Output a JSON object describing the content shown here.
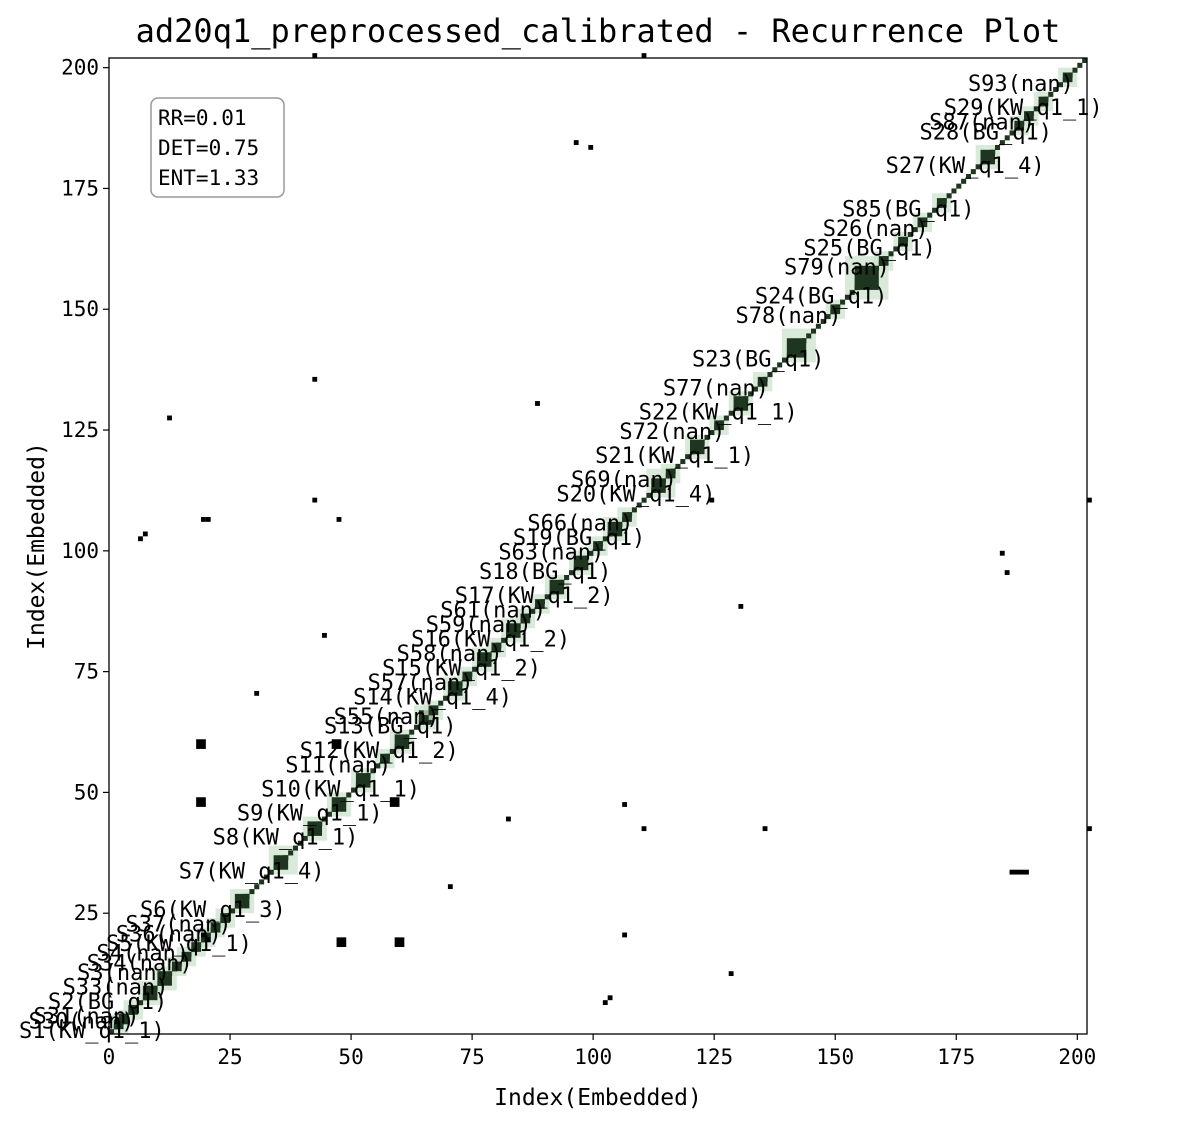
{
  "chart_data": {
    "type": "heatmap",
    "title": "ad20q1_preprocessed_calibrated - Recurrence Plot",
    "xlabel": "Index(Embedded)",
    "ylabel": "Index(Embedded)",
    "xlim": [
      0,
      202
    ],
    "ylim": [
      0,
      202
    ],
    "xticks": [
      0,
      25,
      50,
      75,
      100,
      125,
      150,
      175,
      200
    ],
    "yticks": [
      25,
      50,
      75,
      100,
      125,
      150,
      175,
      200
    ],
    "grid": false,
    "colors": {
      "recurrence": "#000000",
      "block": "#1e3520",
      "segment_fill": "#cde3cd"
    },
    "stats": [
      "RR=0.01",
      "DET=0.75",
      "ENT=1.33"
    ],
    "segments": [
      {
        "label": "S1(KW_q1_1)",
        "start": 0,
        "end": 3
      },
      {
        "label": "S30(nan)",
        "start": 2,
        "end": 4
      },
      {
        "label": "S31(nan)",
        "start": 3,
        "end": 6
      },
      {
        "label": "S2(BG_q1)",
        "start": 6,
        "end": 10
      },
      {
        "label": "S33(nan)",
        "start": 9,
        "end": 13
      },
      {
        "label": "S3(nan)",
        "start": 12,
        "end": 15
      },
      {
        "label": "S34(nan)",
        "start": 14,
        "end": 17
      },
      {
        "label": "S4(nan)",
        "start": 16,
        "end": 19
      },
      {
        "label": "S5(KW_q1_1)",
        "start": 18,
        "end": 21
      },
      {
        "label": "S36(nan)",
        "start": 20,
        "end": 23
      },
      {
        "label": "S37(nan)",
        "start": 22,
        "end": 25
      },
      {
        "label": "S6(KW_q1_3)",
        "start": 25,
        "end": 29
      },
      {
        "label": "S7(KW_q1_4)",
        "start": 33,
        "end": 38
      },
      {
        "label": "S8(KW_q1_1)",
        "start": 40,
        "end": 44
      },
      {
        "label": "S9(KW_q1_1)",
        "start": 45,
        "end": 49
      },
      {
        "label": "S10(KW_q1_1)",
        "start": 50,
        "end": 54
      },
      {
        "label": "S11(nan)",
        "start": 55,
        "end": 58
      },
      {
        "label": "S12(KW_q1_2)",
        "start": 58,
        "end": 62
      },
      {
        "label": "S13(BG_q1)",
        "start": 63,
        "end": 67
      },
      {
        "label": "S55(nan)",
        "start": 65,
        "end": 68
      },
      {
        "label": "S14(KW_q1_4)",
        "start": 69,
        "end": 73
      },
      {
        "label": "S57(nan)",
        "start": 72,
        "end": 75
      },
      {
        "label": "S15(KW_q1_2)",
        "start": 75,
        "end": 79
      },
      {
        "label": "S58(nan)",
        "start": 78,
        "end": 81
      },
      {
        "label": "S16(KW_q1_2)",
        "start": 81,
        "end": 85
      },
      {
        "label": "S59(nan)",
        "start": 84,
        "end": 87
      },
      {
        "label": "S61(nan)",
        "start": 87,
        "end": 90
      },
      {
        "label": "S17(KW_q1_2)",
        "start": 90,
        "end": 94
      },
      {
        "label": "S18(BG_q1)",
        "start": 95,
        "end": 99
      },
      {
        "label": "S63(nan)",
        "start": 99,
        "end": 102
      },
      {
        "label": "S19(BG_q1)",
        "start": 102,
        "end": 106
      },
      {
        "label": "S66(nan)",
        "start": 105,
        "end": 108
      },
      {
        "label": "S20(KW_q1_4)",
        "start": 111,
        "end": 116
      },
      {
        "label": "S69(nan)",
        "start": 114,
        "end": 117
      },
      {
        "label": "S21(KW_q1_1)",
        "start": 119,
        "end": 123
      },
      {
        "label": "S72(nan)",
        "start": 124,
        "end": 127
      },
      {
        "label": "S22(KW_q1_1)",
        "start": 128,
        "end": 132
      },
      {
        "label": "S77(nan)",
        "start": 133,
        "end": 136
      },
      {
        "label": "S23(BG_q1)",
        "start": 139,
        "end": 145
      },
      {
        "label": "S78(nan)",
        "start": 148,
        "end": 151
      },
      {
        "label": "S24(BG_q1)",
        "start": 152,
        "end": 160
      },
      {
        "label": "S79(nan)",
        "start": 158,
        "end": 161
      },
      {
        "label": "S25(BG_q1)",
        "start": 162,
        "end": 165
      },
      {
        "label": "S26(nan)",
        "start": 166,
        "end": 169
      },
      {
        "label": "S85(BG_q1)",
        "start": 170,
        "end": 173
      },
      {
        "label": "S27(KW_q1_4)",
        "start": 179,
        "end": 183
      },
      {
        "label": "S28(BG_q1)",
        "start": 186,
        "end": 189
      },
      {
        "label": "S87(nan)",
        "start": 188,
        "end": 191
      },
      {
        "label": "S29(KW_q1_1)",
        "start": 191,
        "end": 194
      },
      {
        "label": "S93(nan)",
        "start": 196,
        "end": 199
      }
    ],
    "recurrence_points": [
      [
        42,
        202
      ],
      [
        110,
        202
      ],
      [
        96,
        184
      ],
      [
        99,
        183
      ],
      [
        12,
        127
      ],
      [
        42,
        135
      ],
      [
        88,
        130
      ],
      [
        6,
        102
      ],
      [
        7,
        103
      ],
      [
        19,
        106
      ],
      [
        20,
        106
      ],
      [
        42,
        110
      ],
      [
        47,
        106
      ],
      [
        124,
        110
      ],
      [
        184,
        99
      ],
      [
        185,
        95
      ],
      [
        202,
        110
      ],
      [
        44,
        82
      ],
      [
        130,
        88
      ],
      [
        30,
        70
      ],
      [
        106,
        47
      ],
      [
        110,
        42
      ],
      [
        135,
        42
      ],
      [
        202,
        42
      ],
      [
        82,
        44
      ],
      [
        70,
        30
      ],
      [
        106,
        20
      ],
      [
        128,
        12
      ],
      [
        102,
        6
      ],
      [
        103,
        7
      ],
      [
        19,
        20
      ],
      [
        20,
        19
      ]
    ],
    "recurrence_blocks": [
      [
        18,
        59,
        20,
        61
      ],
      [
        18,
        47,
        20,
        49
      ],
      [
        47,
        18,
        49,
        20
      ],
      [
        59,
        18,
        61,
        20
      ],
      [
        46,
        59,
        48,
        61
      ],
      [
        58,
        47,
        60,
        49
      ],
      [
        186,
        33,
        190,
        34
      ]
    ]
  }
}
